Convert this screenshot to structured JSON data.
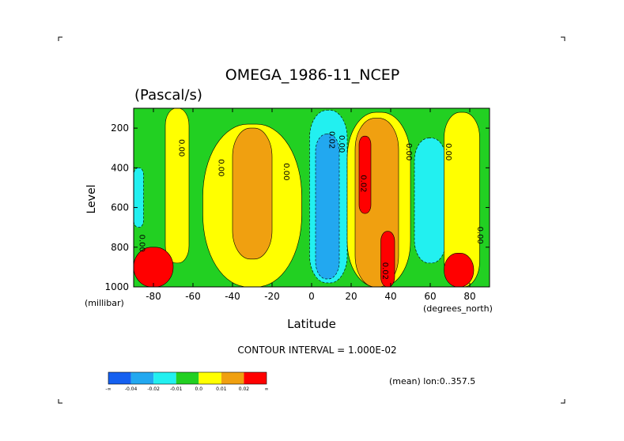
{
  "chart_data": {
    "type": "heatmap",
    "title": "OMEGA_1986-11_NCEP",
    "subtitle": "(Pascal/s)",
    "xlabel": "Latitude",
    "ylabel": "Level",
    "x_unit": "(degrees_north)",
    "y_unit": "(millibar)",
    "xlim": [
      -90,
      90
    ],
    "ylim": [
      1000,
      100
    ],
    "x_ticks": [
      "-80",
      "-60",
      "-40",
      "-20",
      "0",
      "20",
      "40",
      "60",
      "80"
    ],
    "x_tick_values": [
      -80,
      -60,
      -40,
      -20,
      0,
      20,
      40,
      60,
      80
    ],
    "y_ticks": [
      "200",
      "400",
      "600",
      "800",
      "1000"
    ],
    "y_tick_values": [
      200,
      400,
      600,
      800,
      1000
    ],
    "contour_interval_text": "CONTOUR INTERVAL = 1.000E-02",
    "mean_text": "(mean) lon:0..357.5",
    "colorbar": {
      "colors": [
        "#1560f0",
        "#22a8f0",
        "#22f0f0",
        "#22d022",
        "#ffff00",
        "#f0a010",
        "#ff0000"
      ],
      "labels": [
        "-∞",
        "-0.04",
        "-0.02",
        "-0.01",
        "0.0",
        "0.01",
        "0.02",
        "∞"
      ]
    },
    "contour_labels": [
      {
        "text": "0.00",
        "lat": -87,
        "lev": 780
      },
      {
        "text": "0.00",
        "lat": -67,
        "lev": 300
      },
      {
        "text": "0.00",
        "lat": -47,
        "lev": 400
      },
      {
        "text": "0.00",
        "lat": -14,
        "lev": 420
      },
      {
        "text": "0.02",
        "lat": 9,
        "lev": 260
      },
      {
        "text": "0.00",
        "lat": 14,
        "lev": 280
      },
      {
        "text": "0.02",
        "lat": 25,
        "lev": 480
      },
      {
        "text": "0.00",
        "lat": 48,
        "lev": 320
      },
      {
        "text": "0.00",
        "lat": 68,
        "lev": 320
      },
      {
        "text": "0.02",
        "lat": 36,
        "lev": 920
      },
      {
        "text": "0.00",
        "lat": 84,
        "lev": 740
      }
    ],
    "regions": [
      {
        "name": "cyan-south-high",
        "color": "#22f0f0",
        "lat": [
          -90,
          -85
        ],
        "lev": [
          400,
          700
        ]
      },
      {
        "name": "yellow-south",
        "color": "#ffff00",
        "lat": [
          -74,
          -62
        ],
        "lev": [
          100,
          880
        ]
      },
      {
        "name": "red-south-surface",
        "color": "#ff0000",
        "lat": [
          -90,
          -70
        ],
        "lev": [
          800,
          1000
        ]
      },
      {
        "name": "yellow-midlat-south",
        "color": "#ffff00",
        "lat": [
          -55,
          -5
        ],
        "lev": [
          180,
          1000
        ]
      },
      {
        "name": "orange-midlat-south",
        "color": "#f0a010",
        "lat": [
          -40,
          -20
        ],
        "lev": [
          200,
          860
        ]
      },
      {
        "name": "cyan-tropics",
        "color": "#22f0f0",
        "lat": [
          -1,
          18
        ],
        "lev": [
          110,
          980
        ]
      },
      {
        "name": "blue-tropics",
        "color": "#22a8f0",
        "lat": [
          2,
          14
        ],
        "lev": [
          230,
          960
        ]
      },
      {
        "name": "yellow-subtropics-north",
        "color": "#ffff00",
        "lat": [
          18,
          50
        ],
        "lev": [
          120,
          1000
        ]
      },
      {
        "name": "orange-subtropics-north",
        "color": "#f0a010",
        "lat": [
          22,
          44
        ],
        "lev": [
          150,
          1000
        ]
      },
      {
        "name": "red-subtropics-north-high",
        "color": "#ff0000",
        "lat": [
          24,
          30
        ],
        "lev": [
          240,
          630
        ]
      },
      {
        "name": "red-subtropics-north-low",
        "color": "#ff0000",
        "lat": [
          35,
          42
        ],
        "lev": [
          720,
          1000
        ]
      },
      {
        "name": "cyan-north-midlat",
        "color": "#22f0f0",
        "lat": [
          52,
          68
        ],
        "lev": [
          250,
          880
        ]
      },
      {
        "name": "yellow-north-polar",
        "color": "#ffff00",
        "lat": [
          67,
          85
        ],
        "lev": [
          120,
          1000
        ]
      },
      {
        "name": "red-north-surface",
        "color": "#ff0000",
        "lat": [
          67,
          82
        ],
        "lev": [
          830,
          1000
        ]
      }
    ]
  }
}
